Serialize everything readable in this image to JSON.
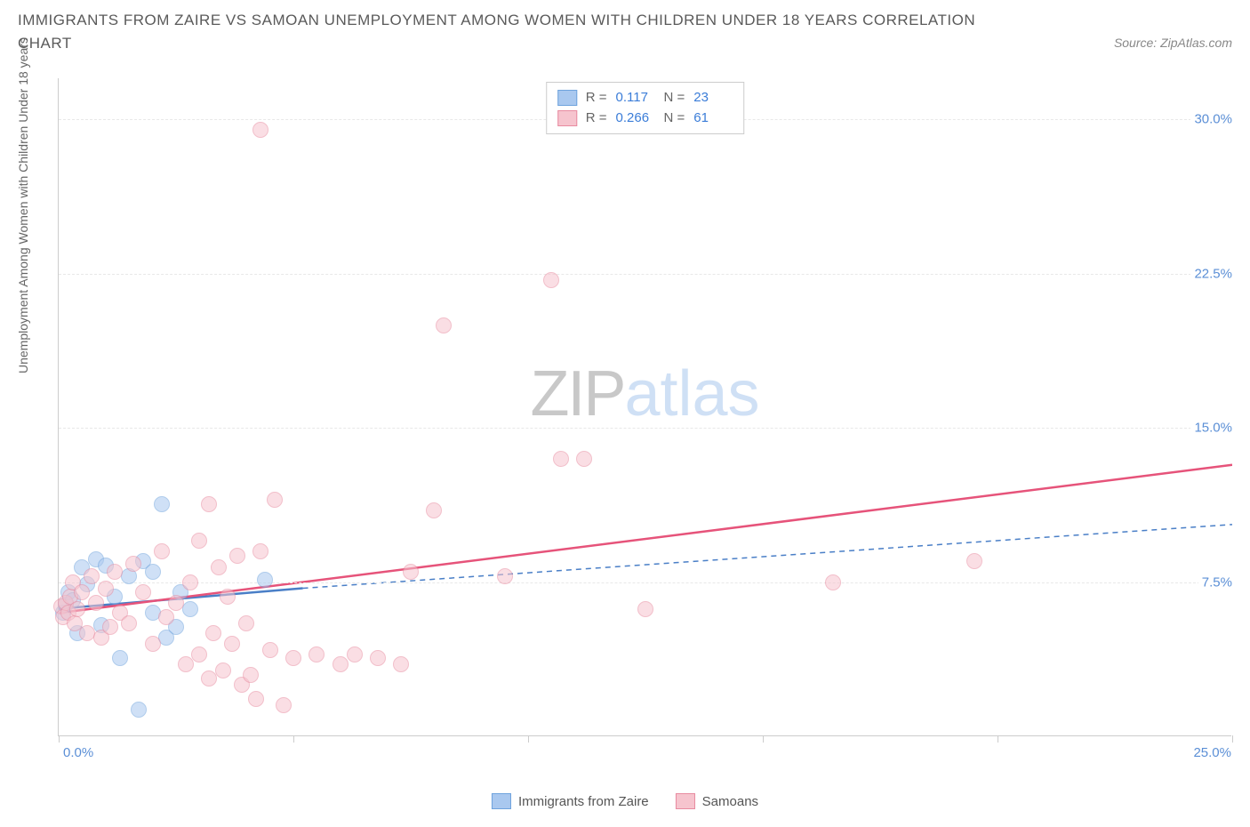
{
  "title": "IMMIGRANTS FROM ZAIRE VS SAMOAN UNEMPLOYMENT AMONG WOMEN WITH CHILDREN UNDER 18 YEARS CORRELATION CHART",
  "source": "Source: ZipAtlas.com",
  "yaxis_title": "Unemployment Among Women with Children Under 18 years",
  "watermark": {
    "a": "ZIP",
    "b": "atlas"
  },
  "chart": {
    "type": "scatter",
    "xlim": [
      0,
      25
    ],
    "ylim": [
      0,
      32
    ],
    "x_ticks": [
      0,
      5,
      10,
      15,
      20,
      25
    ],
    "y_gridlines": [
      7.5,
      15.0,
      22.5,
      30.0
    ],
    "y_labels": [
      "7.5%",
      "15.0%",
      "22.5%",
      "30.0%"
    ],
    "x_label_min": "0.0%",
    "x_label_max": "25.0%",
    "background": "#ffffff",
    "grid_color": "#e8e8e8",
    "axis_color": "#cccccc",
    "marker_radius": 9,
    "marker_opacity": 0.55,
    "series": [
      {
        "name": "Immigrants from Zaire",
        "fill": "#a9c8ef",
        "stroke": "#6fa3dd",
        "r_value": "0.117",
        "n_value": "23",
        "trend": {
          "x0": 0,
          "y0": 6.2,
          "x1": 5.2,
          "y1": 7.2,
          "dashed_x1": 25,
          "dashed_y1": 10.3,
          "color": "#4a7fc7"
        },
        "points": [
          [
            0.1,
            6.0
          ],
          [
            0.15,
            6.4
          ],
          [
            0.2,
            7.0
          ],
          [
            0.3,
            6.6
          ],
          [
            0.4,
            5.0
          ],
          [
            0.5,
            8.2
          ],
          [
            0.8,
            8.6
          ],
          [
            0.9,
            5.4
          ],
          [
            1.0,
            8.3
          ],
          [
            1.2,
            6.8
          ],
          [
            1.3,
            3.8
          ],
          [
            1.5,
            7.8
          ],
          [
            1.8,
            8.5
          ],
          [
            2.0,
            8.0
          ],
          [
            2.2,
            11.3
          ],
          [
            2.0,
            6.0
          ],
          [
            2.3,
            4.8
          ],
          [
            2.5,
            5.3
          ],
          [
            2.6,
            7.0
          ],
          [
            2.8,
            6.2
          ],
          [
            1.7,
            1.3
          ],
          [
            4.4,
            7.6
          ],
          [
            0.6,
            7.4
          ]
        ]
      },
      {
        "name": "Samoans",
        "fill": "#f6c4ce",
        "stroke": "#e88ba0",
        "r_value": "0.266",
        "n_value": "61",
        "trend": {
          "x0": 0,
          "y0": 6.0,
          "x1": 25,
          "y1": 13.2,
          "color": "#e6537a"
        },
        "points": [
          [
            0.05,
            6.3
          ],
          [
            0.1,
            5.8
          ],
          [
            0.15,
            6.5
          ],
          [
            0.2,
            6.0
          ],
          [
            0.25,
            6.8
          ],
          [
            0.3,
            7.5
          ],
          [
            0.35,
            5.5
          ],
          [
            0.4,
            6.2
          ],
          [
            0.5,
            7.0
          ],
          [
            0.6,
            5.0
          ],
          [
            0.7,
            7.8
          ],
          [
            0.8,
            6.5
          ],
          [
            0.9,
            4.8
          ],
          [
            1.0,
            7.2
          ],
          [
            1.1,
            5.3
          ],
          [
            1.2,
            8.0
          ],
          [
            1.3,
            6.0
          ],
          [
            1.5,
            5.5
          ],
          [
            1.6,
            8.4
          ],
          [
            1.8,
            7.0
          ],
          [
            2.0,
            4.5
          ],
          [
            2.2,
            9.0
          ],
          [
            2.3,
            5.8
          ],
          [
            2.5,
            6.5
          ],
          [
            2.7,
            3.5
          ],
          [
            2.8,
            7.5
          ],
          [
            3.0,
            4.0
          ],
          [
            3.0,
            9.5
          ],
          [
            3.2,
            11.3
          ],
          [
            3.2,
            2.8
          ],
          [
            3.3,
            5.0
          ],
          [
            3.4,
            8.2
          ],
          [
            3.5,
            3.2
          ],
          [
            3.6,
            6.8
          ],
          [
            3.7,
            4.5
          ],
          [
            3.8,
            8.8
          ],
          [
            3.9,
            2.5
          ],
          [
            4.0,
            5.5
          ],
          [
            4.1,
            3.0
          ],
          [
            4.2,
            1.8
          ],
          [
            4.3,
            9.0
          ],
          [
            4.5,
            4.2
          ],
          [
            4.6,
            11.5
          ],
          [
            4.8,
            1.5
          ],
          [
            5.0,
            3.8
          ],
          [
            5.5,
            4.0
          ],
          [
            6.0,
            3.5
          ],
          [
            6.3,
            4.0
          ],
          [
            6.8,
            3.8
          ],
          [
            7.3,
            3.5
          ],
          [
            7.5,
            8.0
          ],
          [
            8.0,
            11.0
          ],
          [
            8.2,
            20.0
          ],
          [
            9.5,
            7.8
          ],
          [
            10.5,
            22.2
          ],
          [
            10.7,
            13.5
          ],
          [
            11.2,
            13.5
          ],
          [
            12.5,
            6.2
          ],
          [
            16.5,
            7.5
          ],
          [
            19.5,
            8.5
          ],
          [
            4.3,
            29.5
          ]
        ]
      }
    ]
  },
  "legend_bottom": [
    {
      "label": "Immigrants from Zaire",
      "fill": "#a9c8ef",
      "stroke": "#6fa3dd"
    },
    {
      "label": "Samoans",
      "fill": "#f6c4ce",
      "stroke": "#e88ba0"
    }
  ]
}
